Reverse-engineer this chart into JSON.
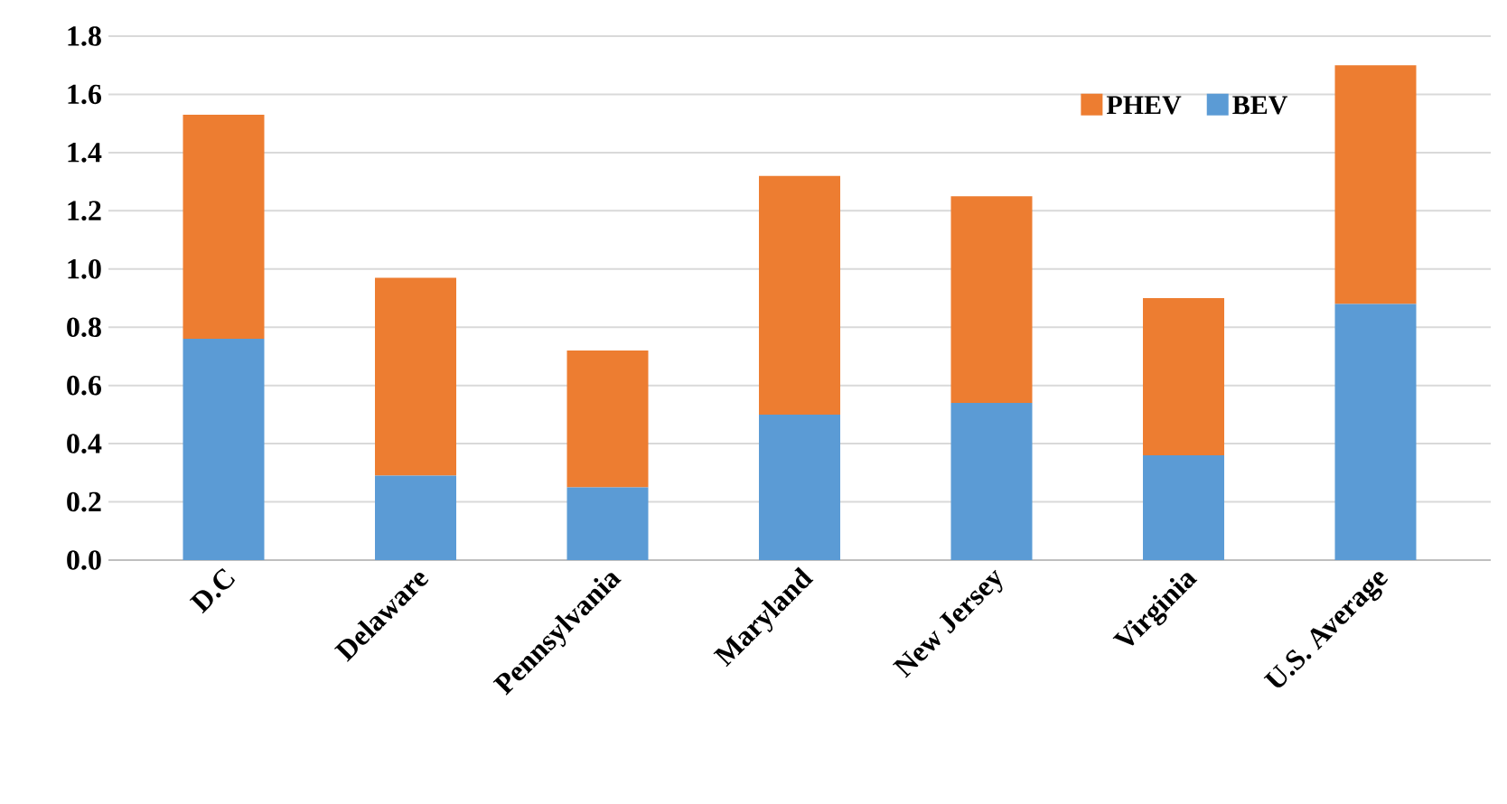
{
  "chart_data": {
    "type": "bar",
    "stacked": true,
    "categories": [
      "D.C",
      "Delaware",
      "Pennsylvania",
      "Maryland",
      "New Jersey",
      "Virginia",
      "U.S. Average"
    ],
    "series": [
      {
        "name": "BEV",
        "color": "#5b9bd5",
        "values": [
          0.76,
          0.29,
          0.25,
          0.5,
          0.54,
          0.36,
          0.88
        ]
      },
      {
        "name": "PHEV",
        "color": "#ed7d31",
        "values": [
          0.77,
          0.68,
          0.47,
          0.82,
          0.71,
          0.54,
          0.82
        ]
      }
    ],
    "ylim": [
      0,
      1.8
    ],
    "yticks": [
      {
        "value": 0,
        "label": "0.0"
      },
      {
        "value": 0.2,
        "label": "0.2"
      },
      {
        "value": 0.4,
        "label": "0.4"
      },
      {
        "value": 0.6,
        "label": "0.6"
      },
      {
        "value": 0.8,
        "label": "0.8"
      },
      {
        "value": 1.0,
        "label": "1.0"
      },
      {
        "value": 1.2,
        "label": "1.2"
      },
      {
        "value": 1.4,
        "label": "1.4"
      },
      {
        "value": 1.6,
        "label": "1.6"
      },
      {
        "value": 1.8,
        "label": "1.8"
      }
    ],
    "grid": "y",
    "legend": "top right"
  }
}
